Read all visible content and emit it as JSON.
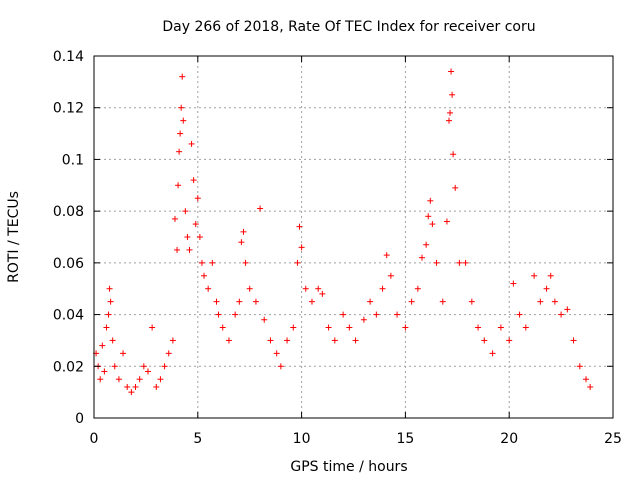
{
  "chart_data": {
    "type": "scatter",
    "title": "Day 266 of 2018, Rate Of TEC Index for receiver coru",
    "xlabel": "GPS time / hours",
    "ylabel": "ROTI / TECUs",
    "xlim": [
      0,
      25
    ],
    "ylim": [
      0,
      0.14
    ],
    "xticks": [
      0,
      5,
      10,
      15,
      20,
      25
    ],
    "yticks": [
      0,
      0.02,
      0.04,
      0.06,
      0.08,
      0.1,
      0.12,
      0.14
    ],
    "xtick_labels": [
      "0",
      "5",
      "10",
      "15",
      "20",
      "25"
    ],
    "ytick_labels": [
      "0",
      "0.02",
      "0.04",
      "0.06",
      "0.08",
      "0.1",
      "0.12",
      "0.14"
    ],
    "grid": true,
    "marker": "+",
    "color": "#ff0000",
    "series": [
      {
        "name": "ROTI",
        "points": [
          [
            0.1,
            0.025
          ],
          [
            0.2,
            0.02
          ],
          [
            0.3,
            0.015
          ],
          [
            0.4,
            0.028
          ],
          [
            0.5,
            0.018
          ],
          [
            0.6,
            0.035
          ],
          [
            0.7,
            0.04
          ],
          [
            0.75,
            0.05
          ],
          [
            0.8,
            0.045
          ],
          [
            0.9,
            0.03
          ],
          [
            1.0,
            0.02
          ],
          [
            1.2,
            0.015
          ],
          [
            1.4,
            0.025
          ],
          [
            1.6,
            0.012
          ],
          [
            1.8,
            0.01
          ],
          [
            2.0,
            0.012
          ],
          [
            2.2,
            0.015
          ],
          [
            2.4,
            0.02
          ],
          [
            2.6,
            0.018
          ],
          [
            2.8,
            0.035
          ],
          [
            3.0,
            0.012
          ],
          [
            3.2,
            0.015
          ],
          [
            3.4,
            0.02
          ],
          [
            3.6,
            0.025
          ],
          [
            3.8,
            0.03
          ],
          [
            3.9,
            0.077
          ],
          [
            4.0,
            0.065
          ],
          [
            4.05,
            0.09
          ],
          [
            4.1,
            0.103
          ],
          [
            4.15,
            0.11
          ],
          [
            4.2,
            0.12
          ],
          [
            4.25,
            0.132
          ],
          [
            4.3,
            0.115
          ],
          [
            4.4,
            0.08
          ],
          [
            4.5,
            0.07
          ],
          [
            4.6,
            0.065
          ],
          [
            4.7,
            0.106
          ],
          [
            4.8,
            0.092
          ],
          [
            4.9,
            0.075
          ],
          [
            5.0,
            0.085
          ],
          [
            5.1,
            0.07
          ],
          [
            5.2,
            0.06
          ],
          [
            5.3,
            0.055
          ],
          [
            5.5,
            0.05
          ],
          [
            5.7,
            0.06
          ],
          [
            5.9,
            0.045
          ],
          [
            6.0,
            0.04
          ],
          [
            6.2,
            0.035
          ],
          [
            6.5,
            0.03
          ],
          [
            6.8,
            0.04
          ],
          [
            7.0,
            0.045
          ],
          [
            7.1,
            0.068
          ],
          [
            7.2,
            0.072
          ],
          [
            7.3,
            0.06
          ],
          [
            7.5,
            0.05
          ],
          [
            7.8,
            0.045
          ],
          [
            8.0,
            0.081
          ],
          [
            8.2,
            0.038
          ],
          [
            8.5,
            0.03
          ],
          [
            8.8,
            0.025
          ],
          [
            9.0,
            0.02
          ],
          [
            9.3,
            0.03
          ],
          [
            9.6,
            0.035
          ],
          [
            9.8,
            0.06
          ],
          [
            9.9,
            0.074
          ],
          [
            10.0,
            0.066
          ],
          [
            10.2,
            0.05
          ],
          [
            10.5,
            0.045
          ],
          [
            10.8,
            0.05
          ],
          [
            11.0,
            0.048
          ],
          [
            11.3,
            0.035
          ],
          [
            11.6,
            0.03
          ],
          [
            12.0,
            0.04
          ],
          [
            12.3,
            0.035
          ],
          [
            12.6,
            0.03
          ],
          [
            13.0,
            0.038
          ],
          [
            13.3,
            0.045
          ],
          [
            13.6,
            0.04
          ],
          [
            13.9,
            0.05
          ],
          [
            14.1,
            0.063
          ],
          [
            14.3,
            0.055
          ],
          [
            14.6,
            0.04
          ],
          [
            15.0,
            0.035
          ],
          [
            15.3,
            0.045
          ],
          [
            15.6,
            0.05
          ],
          [
            15.8,
            0.062
          ],
          [
            16.0,
            0.067
          ],
          [
            16.1,
            0.078
          ],
          [
            16.2,
            0.084
          ],
          [
            16.3,
            0.075
          ],
          [
            16.5,
            0.06
          ],
          [
            16.8,
            0.045
          ],
          [
            17.0,
            0.076
          ],
          [
            17.1,
            0.115
          ],
          [
            17.15,
            0.118
          ],
          [
            17.2,
            0.134
          ],
          [
            17.25,
            0.125
          ],
          [
            17.3,
            0.102
          ],
          [
            17.4,
            0.089
          ],
          [
            17.6,
            0.06
          ],
          [
            17.9,
            0.06
          ],
          [
            18.2,
            0.045
          ],
          [
            18.5,
            0.035
          ],
          [
            18.8,
            0.03
          ],
          [
            19.2,
            0.025
          ],
          [
            19.6,
            0.035
          ],
          [
            20.0,
            0.03
          ],
          [
            20.2,
            0.052
          ],
          [
            20.5,
            0.04
          ],
          [
            20.8,
            0.035
          ],
          [
            21.2,
            0.055
          ],
          [
            21.5,
            0.045
          ],
          [
            21.8,
            0.05
          ],
          [
            22.0,
            0.055
          ],
          [
            22.2,
            0.045
          ],
          [
            22.5,
            0.04
          ],
          [
            22.8,
            0.042
          ],
          [
            23.1,
            0.03
          ],
          [
            23.4,
            0.02
          ],
          [
            23.7,
            0.015
          ],
          [
            23.9,
            0.012
          ]
        ]
      }
    ]
  }
}
